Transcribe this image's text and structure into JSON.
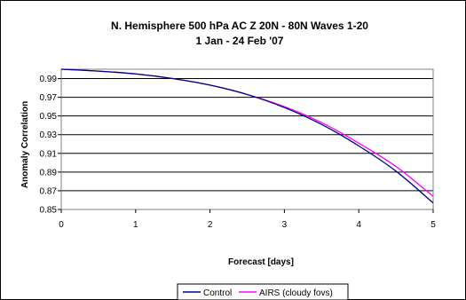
{
  "chart_data": {
    "type": "line",
    "title": "N. Hemisphere 500 hPa AC Z   20N - 80N    Waves 1-20",
    "subtitle": "1 Jan - 24 Feb '07",
    "xlabel": "Forecast [days]",
    "ylabel": "Anomaly Correlation",
    "xlim": [
      0,
      5
    ],
    "ylim": [
      0.85,
      1.0
    ],
    "xticks": [
      "0",
      "1",
      "2",
      "3",
      "4",
      "5"
    ],
    "yticks": [
      "0.85",
      "0.87",
      "0.89",
      "0.91",
      "0.93",
      "0.95",
      "0.97",
      "0.99"
    ],
    "ytick_values": [
      0.85,
      0.87,
      0.89,
      0.91,
      0.93,
      0.95,
      0.97,
      0.99
    ],
    "grid": true,
    "legend_position": "bottom",
    "x": [
      0,
      0.5,
      1,
      1.5,
      2,
      2.5,
      3,
      3.5,
      4,
      4.5,
      5
    ],
    "series": [
      {
        "name": "Control",
        "color": "#000080",
        "values": [
          1.0,
          0.998,
          0.995,
          0.99,
          0.983,
          0.973,
          0.959,
          0.941,
          0.918,
          0.891,
          0.857
        ]
      },
      {
        "name": "AIRS (cloudy fovs)",
        "color": "#ff00ff",
        "values": [
          1.0,
          0.998,
          0.995,
          0.99,
          0.983,
          0.973,
          0.96,
          0.943,
          0.921,
          0.896,
          0.864
        ]
      }
    ]
  }
}
